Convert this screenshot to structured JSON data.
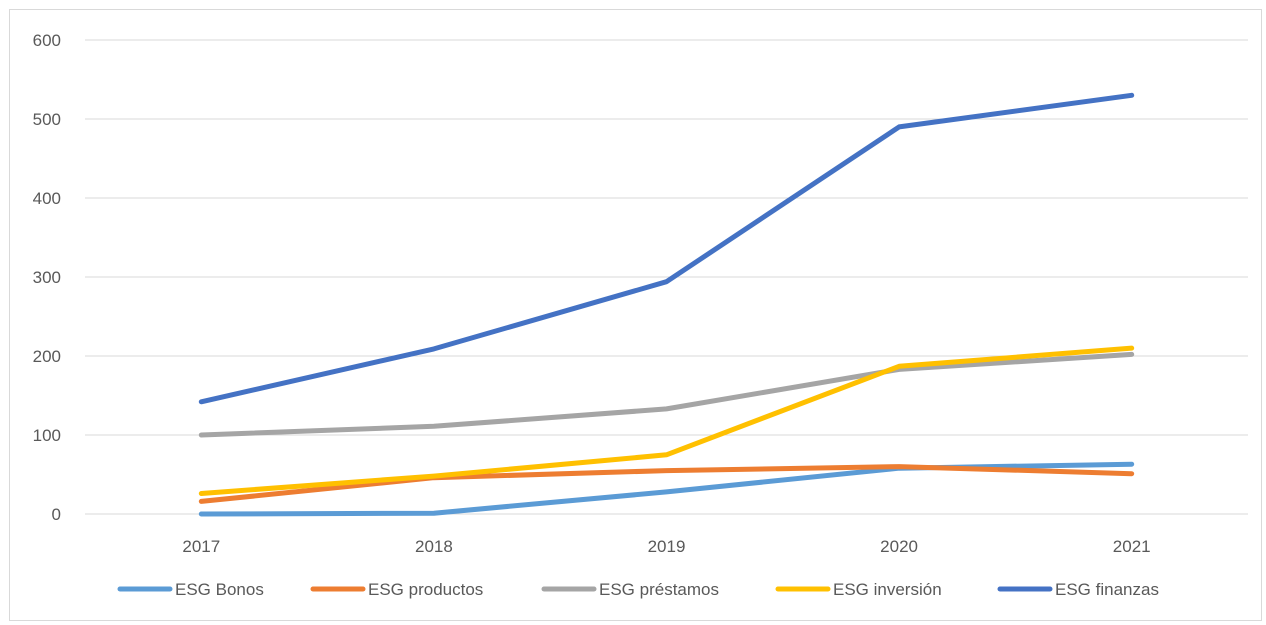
{
  "chart_data": {
    "type": "line",
    "title": "",
    "xlabel": "",
    "ylabel": "",
    "x": [
      "2017",
      "2018",
      "2019",
      "2020",
      "2021"
    ],
    "ylim": [
      0,
      600
    ],
    "y_ticks": [
      0,
      100,
      200,
      300,
      400,
      500,
      600
    ],
    "grid": "horizontal",
    "legend_position": "bottom",
    "series": [
      {
        "name": "ESG Bonos",
        "color": "#5B9BD5",
        "values": [
          0,
          1,
          28,
          58,
          63
        ]
      },
      {
        "name": "ESG productos",
        "color": "#ED7D31",
        "values": [
          16,
          46,
          55,
          60,
          51
        ]
      },
      {
        "name": "ESG préstamos",
        "color": "#A5A5A5",
        "values": [
          100,
          111,
          133,
          183,
          202
        ]
      },
      {
        "name": "ESG inversión",
        "color": "#FFC000",
        "values": [
          26,
          48,
          75,
          187,
          210
        ]
      },
      {
        "name": "ESG finanzas",
        "color": "#4472C4",
        "values": [
          142,
          209,
          294,
          490,
          530
        ]
      }
    ]
  }
}
